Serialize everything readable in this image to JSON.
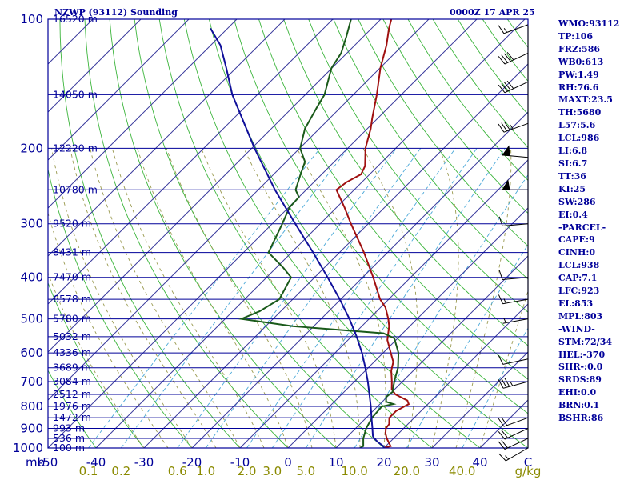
{
  "header": {
    "station": "NZWP (93112) Sounding",
    "time": "0000Z 17 APR 25"
  },
  "indices": [
    "WMO:93112",
    "TP:106",
    "FRZ:586",
    "WB0:613",
    "PW:1.49",
    "RH:76.6",
    "MAXT:23.5",
    "TH:5680",
    "L57:5.6",
    "LCL:986",
    "LI:6.8",
    "SI:6.7",
    "TT:36",
    "KI:25",
    "SW:286",
    "EI:0.4",
    "-PARCEL-",
    "CAPE:9",
    "CINH:0",
    "LCL:938",
    "CAP:7.1",
    "LFC:923",
    "EL:853",
    "MPL:803",
    "-WIND-",
    "STM:72/34",
    "HEL:-370",
    "SHR-:0.0",
    "SRDS:89",
    "EHI:0.0",
    "BRN:0.1",
    "BSHR:86"
  ],
  "colors": {
    "frame": "#000099",
    "isobar": "#000099",
    "isotherm": "#3d3d9e",
    "dry_adiabat": "#3cb53c",
    "moist_adiabat": "#9a9a50",
    "mixing_ratio": "#4aa8d8",
    "temperature": "#a01010",
    "dewpoint": "#1a5a1a",
    "parcel": "#10109a",
    "wind_barb": "#000000",
    "mixing_ratio_label": "#8a8a00"
  },
  "chart_data": {
    "type": "skew-t log-p sounding",
    "title": "NZWP (93112) Sounding",
    "valid": "0000Z 17 APR 25",
    "y_axis": {
      "unit": "mb",
      "scale": "log",
      "range": [
        1000,
        100
      ],
      "ticks": [
        "100",
        "200",
        "300",
        "400",
        "500",
        "600",
        "700",
        "800",
        "900",
        "1000"
      ]
    },
    "x_axis": {
      "unit": "C",
      "range": [
        -50,
        50
      ],
      "skew_deg": 45,
      "ticks": [
        "-50",
        "-40",
        "-30",
        "-20",
        "-10",
        "0",
        "10",
        "20",
        "30",
        "40"
      ],
      "end_label": "C"
    },
    "pressure_unit_label": "mb",
    "mixing_ratio_unit_label": "g/kg",
    "mixing_ratio_ticks": [
      {
        "label": "0.1",
        "value": 0.1
      },
      {
        "label": "0.2",
        "value": 0.2
      },
      {
        "label": "0.6",
        "value": 0.6
      },
      {
        "label": "1.0",
        "value": 1.0
      },
      {
        "label": "2.0",
        "value": 2.0
      },
      {
        "label": "3.0",
        "value": 3.0
      },
      {
        "label": "5.0",
        "value": 5.0
      },
      {
        "label": "10.0",
        "value": 10.0
      },
      {
        "label": "20.0",
        "value": 20.0
      },
      {
        "label": "40.0",
        "value": 40.0
      }
    ],
    "height_labels": [
      {
        "p": 100,
        "label": "16520 m"
      },
      {
        "p": 150,
        "label": "14050 m"
      },
      {
        "p": 200,
        "label": "12220 m"
      },
      {
        "p": 250,
        "label": "10780 m"
      },
      {
        "p": 300,
        "label": "9520 m"
      },
      {
        "p": 350,
        "label": "8431 m"
      },
      {
        "p": 400,
        "label": "7470 m"
      },
      {
        "p": 450,
        "label": "6578 m"
      },
      {
        "p": 500,
        "label": "5780 m"
      },
      {
        "p": 550,
        "label": "5032 m"
      },
      {
        "p": 600,
        "label": "4336 m"
      },
      {
        "p": 650,
        "label": "3689 m"
      },
      {
        "p": 700,
        "label": "3084 m"
      },
      {
        "p": 750,
        "label": "2512 m"
      },
      {
        "p": 800,
        "label": "1976 m"
      },
      {
        "p": 850,
        "label": "1472 m"
      },
      {
        "p": 900,
        "label": "993 m"
      },
      {
        "p": 950,
        "label": "536 m"
      },
      {
        "p": 1000,
        "label": "100 m"
      }
    ],
    "isobars": [
      100,
      150,
      200,
      250,
      300,
      350,
      400,
      450,
      500,
      550,
      600,
      650,
      700,
      750,
      800,
      850,
      900,
      950,
      1000
    ],
    "series": [
      {
        "name": "temperature",
        "points": [
          {
            "p": 1000,
            "t": 20.0
          },
          {
            "p": 990,
            "t": 21.0
          },
          {
            "p": 950,
            "t": 18.6
          },
          {
            "p": 925,
            "t": 17.3
          },
          {
            "p": 900,
            "t": 16.3
          },
          {
            "p": 880,
            "t": 16.1
          },
          {
            "p": 850,
            "t": 14.8
          },
          {
            "p": 820,
            "t": 14.8
          },
          {
            "p": 790,
            "t": 16.0
          },
          {
            "p": 775,
            "t": 15.0
          },
          {
            "p": 750,
            "t": 11.2
          },
          {
            "p": 730,
            "t": 9.4
          },
          {
            "p": 700,
            "t": 7.8
          },
          {
            "p": 660,
            "t": 5.4
          },
          {
            "p": 630,
            "t": 4.0
          },
          {
            "p": 600,
            "t": 1.6
          },
          {
            "p": 560,
            "t": -1.8
          },
          {
            "p": 520,
            "t": -4.3
          },
          {
            "p": 500,
            "t": -6.0
          },
          {
            "p": 470,
            "t": -9.0
          },
          {
            "p": 450,
            "t": -11.8
          },
          {
            "p": 400,
            "t": -17.8
          },
          {
            "p": 350,
            "t": -24.9
          },
          {
            "p": 300,
            "t": -33.6
          },
          {
            "p": 275,
            "t": -38.3
          },
          {
            "p": 250,
            "t": -43.7
          },
          {
            "p": 240,
            "t": -43.2
          },
          {
            "p": 230,
            "t": -41.8
          },
          {
            "p": 220,
            "t": -42.7
          },
          {
            "p": 200,
            "t": -46.3
          },
          {
            "p": 180,
            "t": -49.3
          },
          {
            "p": 170,
            "t": -51.2
          },
          {
            "p": 150,
            "t": -55.1
          },
          {
            "p": 130,
            "t": -59.9
          },
          {
            "p": 115,
            "t": -63.4
          },
          {
            "p": 105,
            "t": -66.4
          },
          {
            "p": 100,
            "t": -67.8
          }
        ]
      },
      {
        "name": "dewpoint",
        "points": [
          {
            "p": 1000,
            "t": 15.0
          },
          {
            "p": 990,
            "t": 15.3
          },
          {
            "p": 950,
            "t": 13.7
          },
          {
            "p": 900,
            "t": 12.2
          },
          {
            "p": 850,
            "t": 11.2
          },
          {
            "p": 800,
            "t": 10.9
          },
          {
            "p": 790,
            "t": 12.8
          },
          {
            "p": 780,
            "t": 10.8
          },
          {
            "p": 760,
            "t": 9.8
          },
          {
            "p": 740,
            "t": 10.1
          },
          {
            "p": 700,
            "t": 8.3
          },
          {
            "p": 650,
            "t": 6.2
          },
          {
            "p": 600,
            "t": 3.2
          },
          {
            "p": 555,
            "t": -0.7
          },
          {
            "p": 540,
            "t": -4.0
          },
          {
            "p": 520,
            "t": -24.4
          },
          {
            "p": 500,
            "t": -36.6
          },
          {
            "p": 480,
            "t": -34.4
          },
          {
            "p": 450,
            "t": -32.8
          },
          {
            "p": 400,
            "t": -34.9
          },
          {
            "p": 380,
            "t": -38.5
          },
          {
            "p": 350,
            "t": -44.8
          },
          {
            "p": 300,
            "t": -47.9
          },
          {
            "p": 275,
            "t": -49.8
          },
          {
            "p": 260,
            "t": -50.0
          },
          {
            "p": 250,
            "t": -52.2
          },
          {
            "p": 230,
            "t": -54.4
          },
          {
            "p": 215,
            "t": -56.1
          },
          {
            "p": 200,
            "t": -59.9
          },
          {
            "p": 180,
            "t": -63.0
          },
          {
            "p": 160,
            "t": -65.0
          },
          {
            "p": 150,
            "t": -66.0
          },
          {
            "p": 130,
            "t": -70.1
          },
          {
            "p": 120,
            "t": -71.2
          },
          {
            "p": 110,
            "t": -73.5
          },
          {
            "p": 100,
            "t": -76.2
          }
        ]
      },
      {
        "name": "parcel",
        "points": [
          {
            "p": 1000,
            "t": 20.0
          },
          {
            "p": 990,
            "t": 19.5
          },
          {
            "p": 970,
            "t": 17.6
          },
          {
            "p": 950,
            "t": 16.0
          },
          {
            "p": 938,
            "t": 15.2
          },
          {
            "p": 900,
            "t": 13.5
          },
          {
            "p": 850,
            "t": 11.1
          },
          {
            "p": 800,
            "t": 8.6
          },
          {
            "p": 750,
            "t": 5.8
          },
          {
            "p": 700,
            "t": 2.8
          },
          {
            "p": 650,
            "t": -0.6
          },
          {
            "p": 600,
            "t": -4.4
          },
          {
            "p": 550,
            "t": -8.9
          },
          {
            "p": 500,
            "t": -14.1
          },
          {
            "p": 450,
            "t": -20.2
          },
          {
            "p": 400,
            "t": -27.3
          },
          {
            "p": 350,
            "t": -35.5
          },
          {
            "p": 300,
            "t": -45.2
          },
          {
            "p": 250,
            "t": -56.5
          },
          {
            "p": 200,
            "t": -69.4
          },
          {
            "p": 150,
            "t": -85.2
          },
          {
            "p": 130,
            "t": -92.0
          },
          {
            "p": 115,
            "t": -98.0
          },
          {
            "p": 105,
            "t": -103.6
          }
        ]
      }
    ],
    "wind_barbs": [
      {
        "p": 1000,
        "dir": 240,
        "spd": 15
      },
      {
        "p": 950,
        "dir": 245,
        "spd": 20
      },
      {
        "p": 900,
        "dir": 245,
        "spd": 20
      },
      {
        "p": 850,
        "dir": 250,
        "spd": 20
      },
      {
        "p": 700,
        "dir": 255,
        "spd": 35
      },
      {
        "p": 620,
        "dir": 258,
        "spd": 10
      },
      {
        "p": 500,
        "dir": 260,
        "spd": 5
      },
      {
        "p": 450,
        "dir": 260,
        "spd": 15
      },
      {
        "p": 400,
        "dir": 265,
        "spd": 10
      },
      {
        "p": 300,
        "dir": 265,
        "spd": 10
      },
      {
        "p": 250,
        "dir": 270,
        "spd": 50
      },
      {
        "p": 210,
        "dir": 275,
        "spd": 50
      },
      {
        "p": 175,
        "dir": 250,
        "spd": 35
      },
      {
        "p": 140,
        "dir": 245,
        "spd": 40
      },
      {
        "p": 120,
        "dir": 245,
        "spd": 40
      },
      {
        "p": 103,
        "dir": 250,
        "spd": 15
      }
    ]
  }
}
